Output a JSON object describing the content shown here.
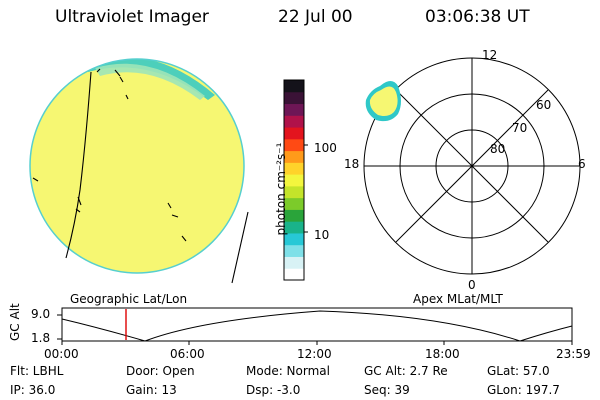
{
  "header": {
    "title": "Ultraviolet Imager",
    "date": "22 Jul 00",
    "time": "03:06:38 UT"
  },
  "colorbar": {
    "unit_label": "photon cm⁻²s⁻¹",
    "tick_100": "100",
    "tick_10": "10",
    "colors": [
      "#ffffff",
      "#d8f2f5",
      "#7fe0e8",
      "#27c8d6",
      "#19b38a",
      "#2aa43a",
      "#7ccb2a",
      "#c4e42a",
      "#f3f63e",
      "#ffd32a",
      "#ff9a1a",
      "#ff4a14",
      "#e3141e",
      "#b0124a",
      "#6e1656",
      "#3a1236",
      "#14121a"
    ]
  },
  "geo": {
    "caption": "Geographic Lat/Lon",
    "disk_fill": "#f6f772",
    "rim_color": "#2fc8c8"
  },
  "apex": {
    "caption": "Apex MLat/MLT",
    "mlt_12": "12",
    "mlt_18": "18",
    "mlt_6": "6",
    "mlt_0": "0",
    "lat_60": "60",
    "lat_70": "70",
    "lat_80": "80"
  },
  "orbit": {
    "ylabel": "GC Alt",
    "y_top": "9.0",
    "y_bot": "1.8",
    "x_ticks": [
      "00:00",
      "06:00",
      "12:00",
      "18:00",
      "23:59"
    ],
    "marker_color": "#dd0000"
  },
  "meta": {
    "flt": "Flt: LBHL",
    "door": "Door: Open",
    "mode": "Mode: Normal",
    "gcalt": "GC Alt: 2.7 Re",
    "glat": "GLat:  57.0",
    "ip": "IP: 36.0",
    "gain": "Gain: 13",
    "dsp": "Dsp:   -3.0",
    "seq": "Seq: 39",
    "glon": "GLon: 197.7"
  }
}
